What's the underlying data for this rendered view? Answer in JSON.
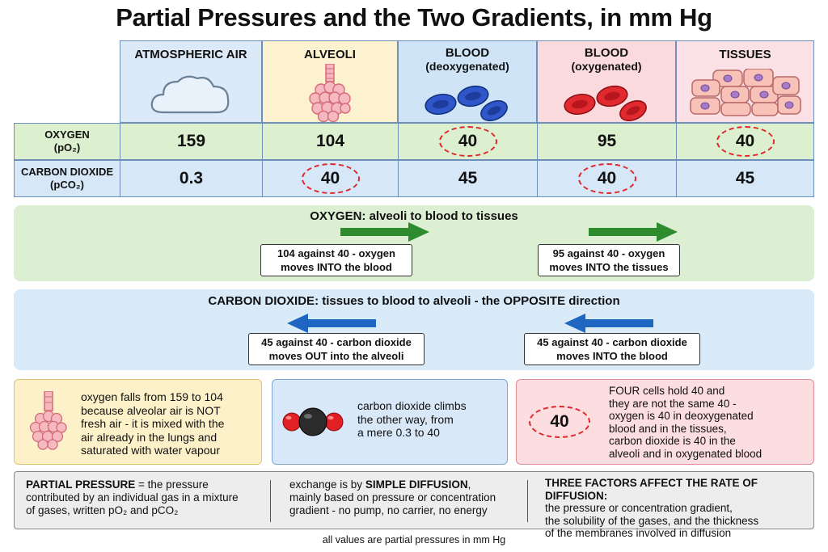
{
  "title": "Partial Pressures and the Two Gradients, in mm Hg",
  "columns": [
    {
      "title": "ATMOSPHERIC AIR",
      "subtitle": ""
    },
    {
      "title": "ALVEOLI",
      "subtitle": ""
    },
    {
      "title": "BLOOD",
      "subtitle": "(deoxygenated)"
    },
    {
      "title": "BLOOD",
      "subtitle": "(oxygenated)"
    },
    {
      "title": "TISSUES",
      "subtitle": ""
    }
  ],
  "rows": {
    "oxygen": {
      "label": "OXYGEN",
      "sublabel": "(pO₂)",
      "values": [
        "159",
        "104",
        "40",
        "95",
        "40"
      ]
    },
    "carbon_dioxide": {
      "label": "CARBON DIOXIDE",
      "sublabel": "(pCO₂)",
      "values": [
        "0.3",
        "40",
        "45",
        "40",
        "45"
      ]
    }
  },
  "colors": {
    "air": "#dbe9f9",
    "alveoli": "#fdf2cf",
    "deoxy": "#cfe4f7",
    "oxy": "#fbdadd",
    "tissues": "#fbe1e6",
    "oxygen_row": "#dcefcf",
    "co2_row": "#d6e7f8",
    "oxygen_band": "#ddefd2",
    "co2_band": "#d9eaf9",
    "green_arrow": "#2e8b2e",
    "blue_arrow": "#1f66c2",
    "highlight_ring": "#e0262b"
  },
  "oxygen_band": {
    "title": "OXYGEN: alveoli to blood to tissues",
    "box1": {
      "line1": "104 against 40 - oxygen",
      "line2": "moves INTO the blood"
    },
    "box2": {
      "line1": "95 against 40 - oxygen",
      "line2": "moves INTO the tissues"
    }
  },
  "co2_band": {
    "title": "CARBON DIOXIDE: tissues to blood to alveoli - the OPPOSITE direction",
    "box1": {
      "line1": "45 against 40 - carbon dioxide",
      "line2": "moves OUT into the alveoli"
    },
    "box2": {
      "line1": "45 against 40 - carbon dioxide",
      "line2": "moves INTO the blood"
    }
  },
  "notes": {
    "left": {
      "lines": [
        "oxygen falls from 159 to 104",
        "because alveolar air is NOT",
        "fresh air - it is mixed with the",
        "air already in the lungs and",
        "saturated with water vapour"
      ]
    },
    "middle": {
      "lines": [
        "carbon dioxide climbs",
        "the other way, from",
        "a mere 0.3 to 40"
      ]
    },
    "right": {
      "badge": "40",
      "lines": [
        "FOUR cells hold 40 and",
        "they are not the same 40 -",
        "oxygen is 40 in deoxygenated",
        "blood and in the tissues,",
        "carbon dioxide is 40 in the",
        "alveoli and in oxygenated blood"
      ]
    }
  },
  "footer": {
    "col1": {
      "bold": "PARTIAL PRESSURE",
      "rest": " = the pressure",
      "line2": "contributed by an individual gas in a mixture",
      "line3": "of gases, written pO₂ and pCO₂"
    },
    "col2": {
      "prefix": "exchange is by ",
      "bold": "SIMPLE DIFFUSION",
      "suffix": ",",
      "line2": "mainly based on pressure or concentration",
      "line3": "gradient - no pump, no carrier, no energy"
    },
    "col3": {
      "bold": "THREE FACTORS AFFECT THE RATE OF DIFFUSION:",
      "line2": "the pressure or concentration gradient,",
      "line3": "the solubility of the gases, and the thickness",
      "line4": "of the membranes involved in diffusion"
    }
  },
  "footnote": "all values are partial pressures in mm Hg"
}
